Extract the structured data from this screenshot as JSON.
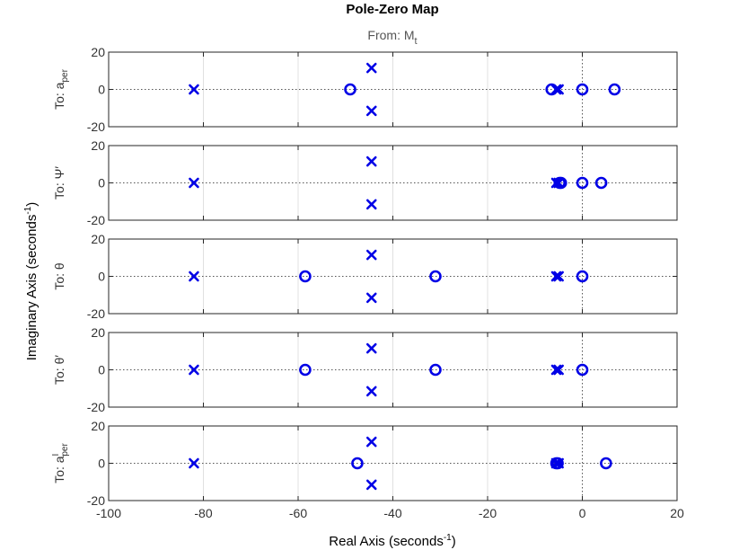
{
  "chart_data": {
    "type": "scatter",
    "title": "Pole-Zero Map",
    "subtitle": {
      "main": "From: M",
      "sub": "t"
    },
    "xlabel": {
      "main": "Real Axis (seconds",
      "sup": "-1",
      "end": ")"
    },
    "ylabel": {
      "main": "Imaginary Axis (seconds",
      "sup": "-1",
      "end": ")"
    },
    "xlim": [
      -100,
      20
    ],
    "ylim": [
      -20,
      20
    ],
    "xticks": [
      -100,
      -80,
      -60,
      -40,
      -20,
      0,
      20
    ],
    "yticks": [
      -20,
      0,
      20
    ],
    "xtick_labels": [
      "-100",
      "-80",
      "-60",
      "-40",
      "-20",
      "0",
      "20"
    ],
    "ytick_labels": [
      "-20",
      "0",
      "20"
    ],
    "grid": true,
    "colors": {
      "marker": "#0000e6"
    },
    "panels": [
      {
        "label": {
          "main": "To: a",
          "sub": "per",
          "sup": ""
        },
        "poles": [
          [
            -82,
            0
          ],
          [
            -44.5,
            11.5
          ],
          [
            -44.5,
            -11.5
          ],
          [
            -5,
            0
          ],
          [
            -5.5,
            0
          ]
        ],
        "zeros": [
          [
            -49,
            0
          ],
          [
            -6.5,
            0
          ],
          [
            0,
            0
          ],
          [
            6.8,
            0
          ]
        ]
      },
      {
        "label": {
          "main": "To: Ψ′",
          "sub": "",
          "sup": ""
        },
        "poles": [
          [
            -82,
            0
          ],
          [
            -44.5,
            11.5
          ],
          [
            -44.5,
            -11.5
          ],
          [
            -5.5,
            0
          ],
          [
            -5,
            0
          ]
        ],
        "zeros": [
          [
            -4.5,
            0
          ],
          [
            -4.8,
            0
          ],
          [
            0,
            0
          ],
          [
            4,
            0
          ]
        ]
      },
      {
        "label": {
          "main": "To: θ",
          "sub": "",
          "sup": ""
        },
        "poles": [
          [
            -82,
            0
          ],
          [
            -44.5,
            11.5
          ],
          [
            -44.5,
            -11.5
          ],
          [
            -5.5,
            0
          ],
          [
            -5,
            0
          ]
        ],
        "zeros": [
          [
            -58.5,
            0
          ],
          [
            -31,
            0
          ],
          [
            0,
            0
          ]
        ]
      },
      {
        "label": {
          "main": "To: θ′",
          "sub": "",
          "sup": ""
        },
        "poles": [
          [
            -82,
            0
          ],
          [
            -44.5,
            11.5
          ],
          [
            -44.5,
            -11.5
          ],
          [
            -5.5,
            0
          ],
          [
            -5,
            0
          ]
        ],
        "zeros": [
          [
            -58.5,
            0
          ],
          [
            -31,
            0
          ],
          [
            0,
            0
          ]
        ]
      },
      {
        "label": {
          "main": "To: a",
          "sub": "per",
          "sup": "I"
        },
        "poles": [
          [
            -82,
            0
          ],
          [
            -44.5,
            11.5
          ],
          [
            -44.5,
            -11.5
          ],
          [
            -5.5,
            0
          ],
          [
            -5,
            0
          ]
        ],
        "zeros": [
          [
            -47.5,
            0
          ],
          [
            -5.5,
            0
          ],
          [
            -5.2,
            0
          ],
          [
            5,
            0
          ]
        ]
      }
    ]
  }
}
